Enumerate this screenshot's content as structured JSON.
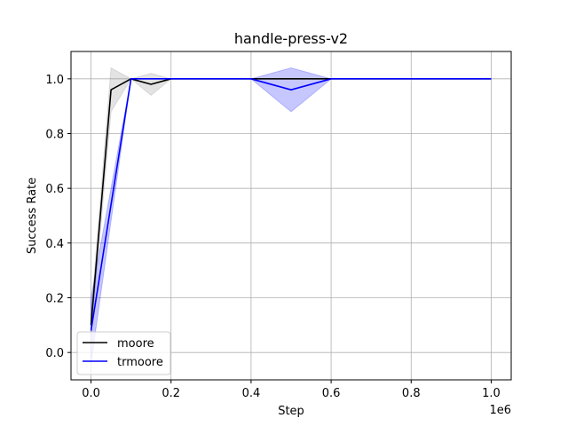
{
  "chart_data": {
    "type": "line",
    "title": "handle-press-v2",
    "xlabel": "Step",
    "ylabel": "Success Rate",
    "x_multiplier_label": "1e6",
    "xlim": [
      -50000,
      1050000
    ],
    "ylim": [
      -0.1,
      1.1
    ],
    "x_ticks": [
      0,
      200000,
      400000,
      600000,
      800000,
      1000000
    ],
    "x_tick_labels": [
      "0.0",
      "0.2",
      "0.4",
      "0.6",
      "0.8",
      "1.0"
    ],
    "y_ticks": [
      0.0,
      0.2,
      0.4,
      0.6,
      0.8,
      1.0
    ],
    "y_tick_labels": [
      "0.0",
      "0.2",
      "0.4",
      "0.6",
      "0.8",
      "1.0"
    ],
    "grid": true,
    "legend_position": "lower-left",
    "series": [
      {
        "name": "moore",
        "color": "#000000",
        "band_color": "#808080",
        "x": [
          0,
          50000,
          100000,
          150000,
          200000,
          400000,
          500000,
          600000,
          1000000
        ],
        "y": [
          0.1,
          0.96,
          1.0,
          0.98,
          1.0,
          1.0,
          1.0,
          1.0,
          1.0
        ],
        "y_lower": [
          0.06,
          0.88,
          1.0,
          0.94,
          1.0,
          1.0,
          1.0,
          1.0,
          1.0
        ],
        "y_upper": [
          0.14,
          1.04,
          1.0,
          1.02,
          1.0,
          1.0,
          1.0,
          1.0,
          1.0
        ]
      },
      {
        "name": "trmoore",
        "color": "#0000ff",
        "band_color": "#0000ff",
        "x": [
          0,
          100000,
          200000,
          400000,
          500000,
          600000,
          1000000
        ],
        "y": [
          0.08,
          1.0,
          1.0,
          1.0,
          0.96,
          1.0,
          1.0
        ],
        "y_lower": [
          -0.04,
          1.0,
          1.0,
          1.0,
          0.88,
          1.0,
          1.0
        ],
        "y_upper": [
          0.2,
          1.0,
          1.0,
          1.0,
          1.04,
          1.0,
          1.0
        ]
      }
    ]
  }
}
